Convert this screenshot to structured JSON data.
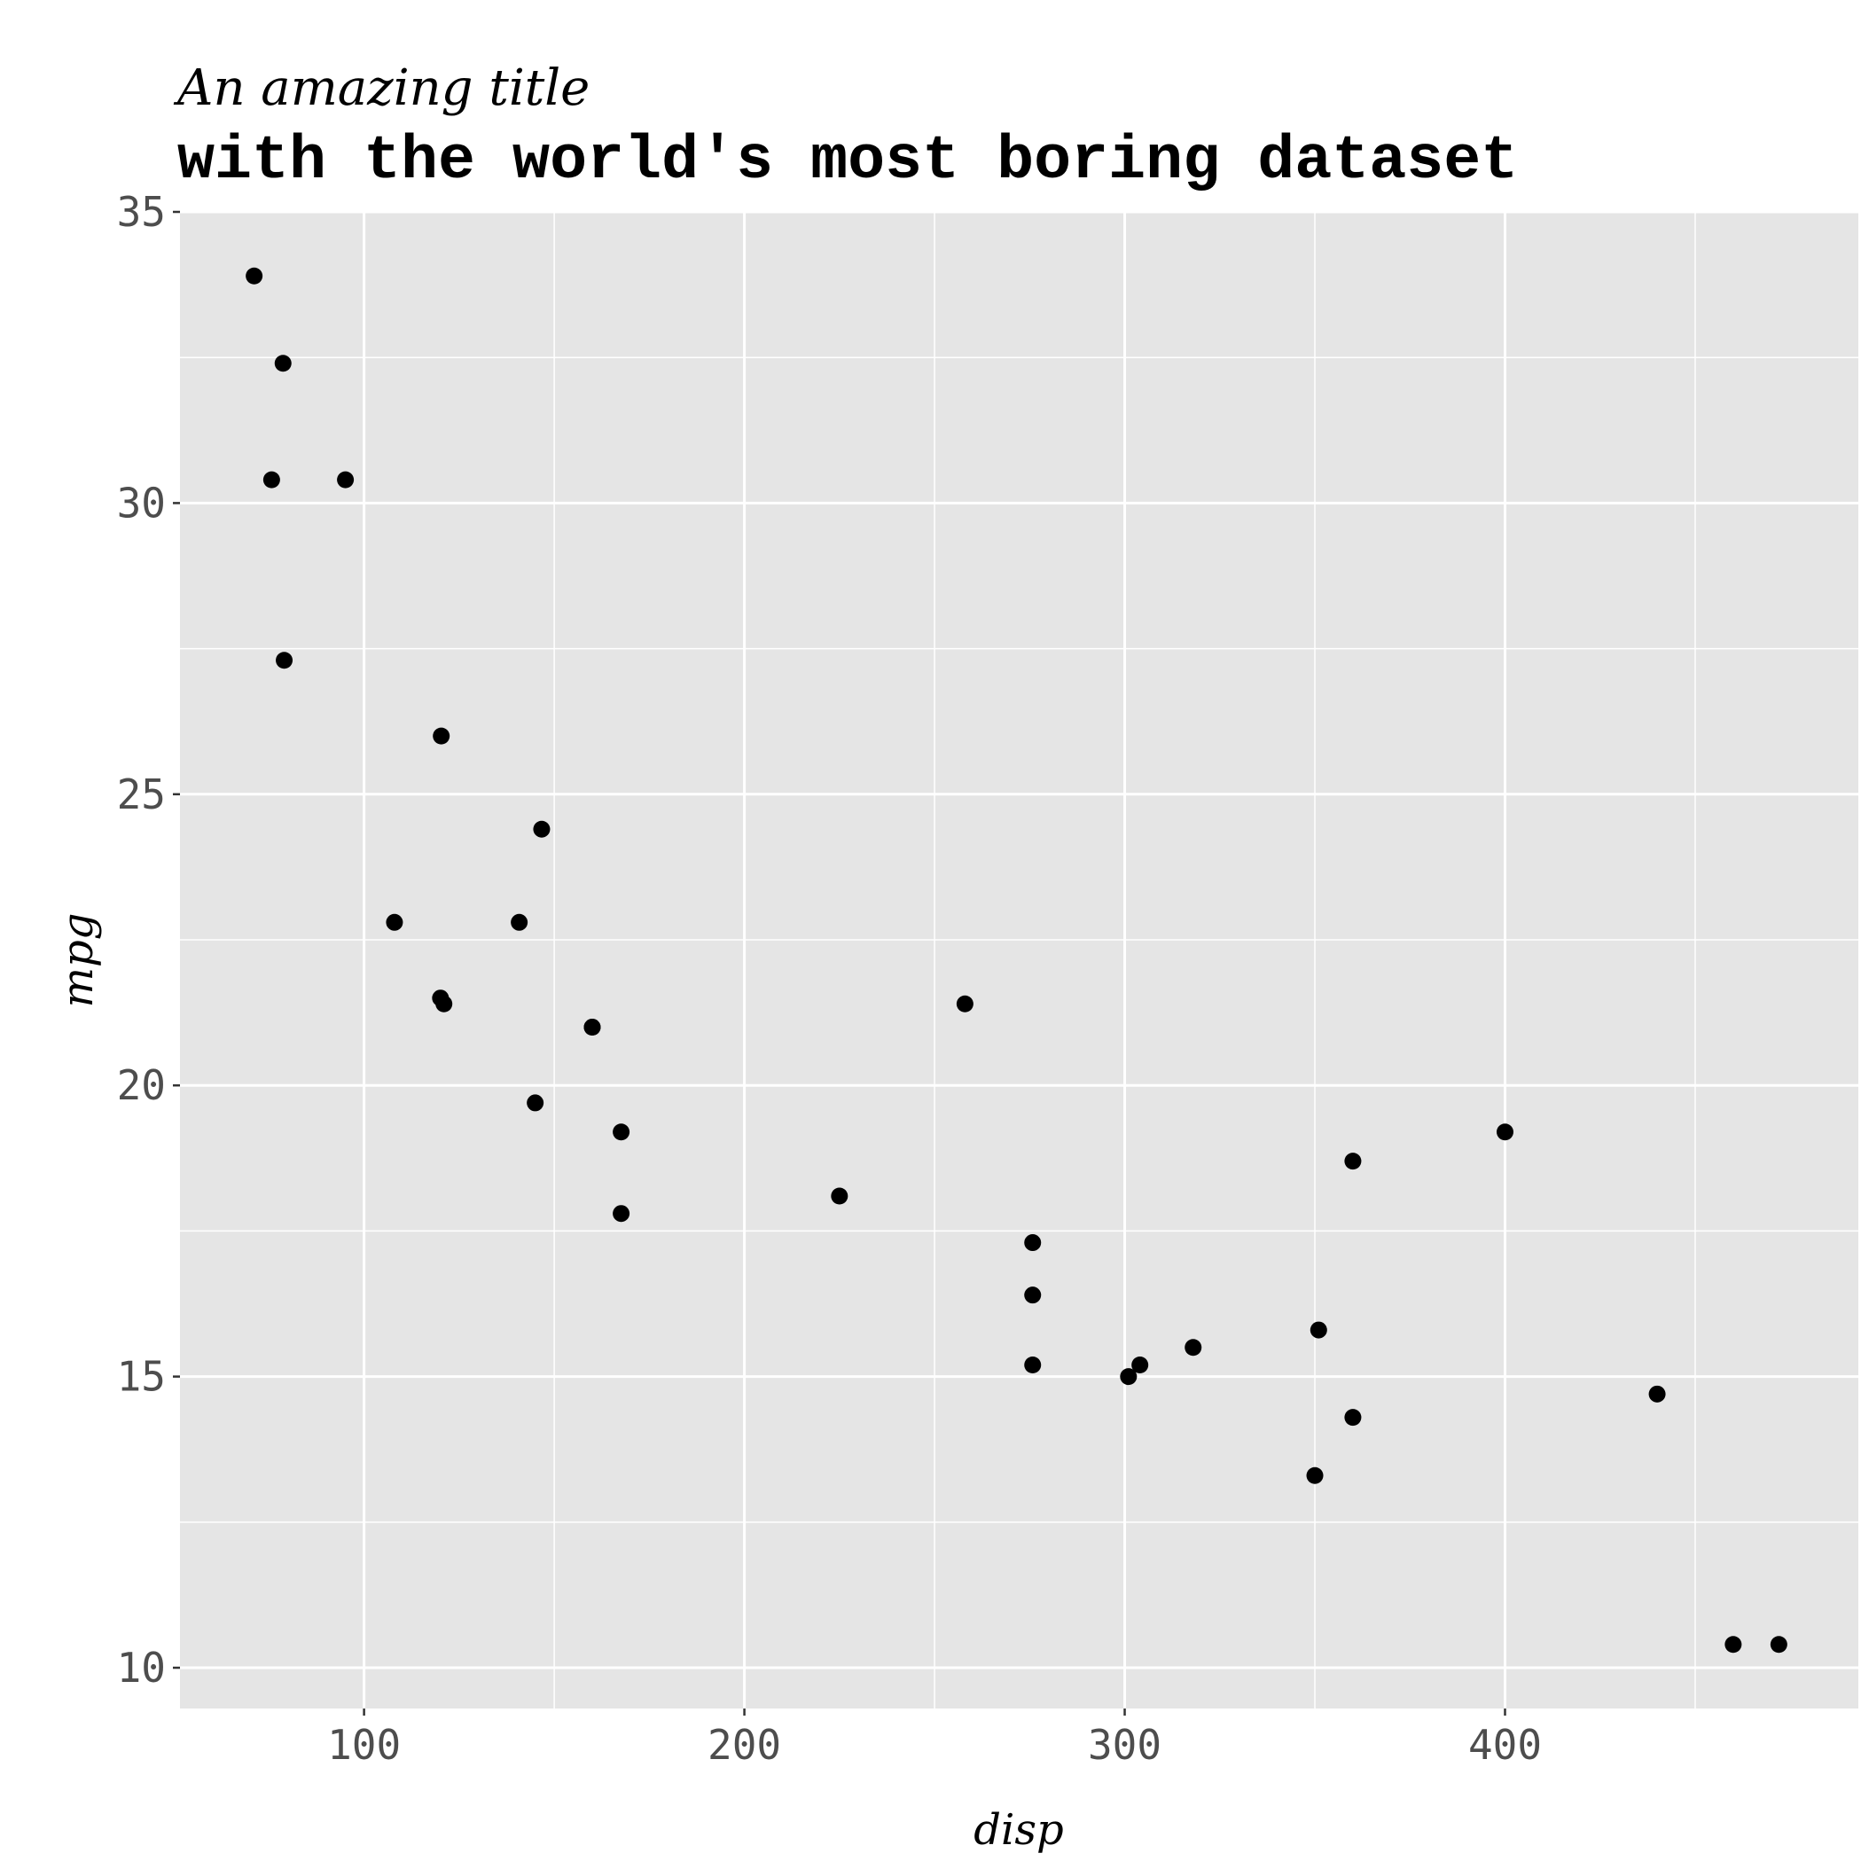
{
  "chart_data": {
    "type": "scatter",
    "title": "An amazing title",
    "subtitle": "with the world's most boring dataset",
    "xlabel": "disp",
    "ylabel": "mpg",
    "xlim": [
      51.6,
      492.9
    ],
    "ylim": [
      9.3,
      35.0
    ],
    "x_ticks": [
      "100",
      "200",
      "300",
      "400"
    ],
    "y_ticks": [
      "10",
      "15",
      "20",
      "25",
      "30",
      "35"
    ],
    "grid": true,
    "panel_background": "#e5e5e5",
    "grid_color": "#ffffff",
    "point_color": "#000000",
    "points": [
      {
        "x": 71.1,
        "y": 33.9
      },
      {
        "x": 78.7,
        "y": 32.4
      },
      {
        "x": 75.7,
        "y": 30.4
      },
      {
        "x": 95.1,
        "y": 30.4
      },
      {
        "x": 79.0,
        "y": 27.3
      },
      {
        "x": 120.3,
        "y": 26.0
      },
      {
        "x": 146.7,
        "y": 24.4
      },
      {
        "x": 108.0,
        "y": 22.8
      },
      {
        "x": 140.8,
        "y": 22.8
      },
      {
        "x": 120.1,
        "y": 21.5
      },
      {
        "x": 121.0,
        "y": 21.4
      },
      {
        "x": 258.0,
        "y": 21.4
      },
      {
        "x": 160.0,
        "y": 21.0
      },
      {
        "x": 160.0,
        "y": 21.0
      },
      {
        "x": 145.0,
        "y": 19.7
      },
      {
        "x": 167.6,
        "y": 19.2
      },
      {
        "x": 400.0,
        "y": 19.2
      },
      {
        "x": 360.0,
        "y": 18.7
      },
      {
        "x": 225.0,
        "y": 18.1
      },
      {
        "x": 167.6,
        "y": 17.8
      },
      {
        "x": 275.8,
        "y": 17.3
      },
      {
        "x": 275.8,
        "y": 16.4
      },
      {
        "x": 351.0,
        "y": 15.8
      },
      {
        "x": 318.0,
        "y": 15.5
      },
      {
        "x": 275.8,
        "y": 15.2
      },
      {
        "x": 304.0,
        "y": 15.2
      },
      {
        "x": 301.0,
        "y": 15.0
      },
      {
        "x": 440.0,
        "y": 14.7
      },
      {
        "x": 360.0,
        "y": 14.3
      },
      {
        "x": 350.0,
        "y": 13.3
      },
      {
        "x": 460.0,
        "y": 10.4
      },
      {
        "x": 472.0,
        "y": 10.4
      }
    ]
  }
}
